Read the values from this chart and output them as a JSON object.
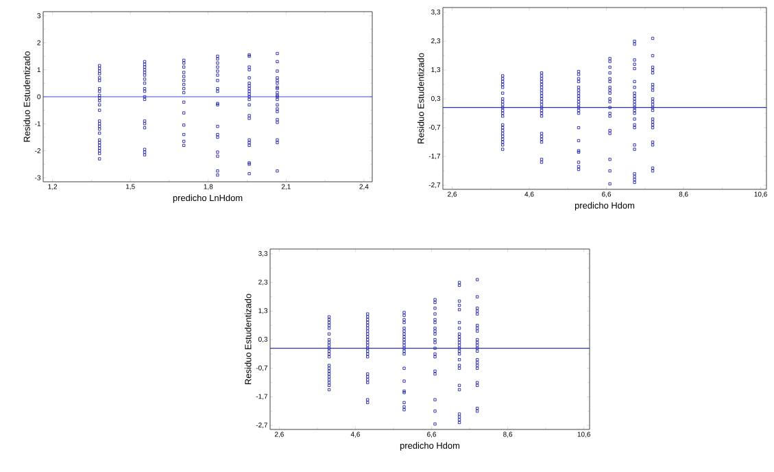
{
  "chart_data": [
    {
      "type": "scatter",
      "xlabel": "predicho LnHdom",
      "ylabel": "Residuo Estudentizado",
      "marker": "square",
      "grid": false,
      "xlim": [
        1.164,
        2.432
      ],
      "ylim": [
        -3.15,
        3.15
      ],
      "xticks": [
        {
          "value": 1.2,
          "label": "1,2"
        },
        {
          "value": 1.5,
          "label": "1,5"
        },
        {
          "value": 1.8,
          "label": "1,8"
        },
        {
          "value": 2.1,
          "label": "2,1"
        },
        {
          "value": 2.4,
          "label": "2,4"
        }
      ],
      "yticks": [
        -3,
        -2,
        -1,
        0,
        1,
        2,
        3
      ],
      "ref_lines": [
        {
          "axis": "y",
          "value": 0,
          "color": "#3a48d0"
        }
      ],
      "series": [
        {
          "color": "#2323a8",
          "x": [
            1.381,
            1.381,
            1.381,
            1.381,
            1.381,
            1.381,
            1.381,
            1.381,
            1.381,
            1.381,
            1.381,
            1.381,
            1.381,
            1.381,
            1.381,
            1.381,
            1.381,
            1.381,
            1.381,
            1.381,
            1.381,
            1.381,
            1.381,
            1.381,
            1.381,
            1.555,
            1.555,
            1.555,
            1.555,
            1.555,
            1.555,
            1.555,
            1.555,
            1.555,
            1.555,
            1.555,
            1.555,
            1.555,
            1.555,
            1.555,
            1.555,
            1.555,
            1.555,
            1.706,
            1.706,
            1.706,
            1.706,
            1.706,
            1.706,
            1.706,
            1.706,
            1.706,
            1.706,
            1.706,
            1.706,
            1.706,
            1.706,
            1.706,
            1.836,
            1.836,
            1.836,
            1.836,
            1.836,
            1.836,
            1.836,
            1.836,
            1.836,
            1.836,
            1.836,
            1.836,
            1.836,
            1.836,
            1.836,
            1.836,
            1.836,
            1.836,
            1.958,
            1.958,
            1.958,
            1.958,
            1.958,
            1.958,
            1.958,
            1.958,
            1.958,
            1.958,
            1.958,
            1.958,
            1.958,
            1.958,
            1.958,
            1.958,
            1.958,
            1.958,
            1.958,
            1.958,
            1.958,
            2.066,
            2.066,
            2.066,
            2.066,
            2.066,
            2.066,
            2.066,
            2.066,
            2.066,
            2.066,
            2.066,
            2.066,
            2.066,
            2.066,
            2.066,
            2.066,
            2.066,
            2.066,
            2.066,
            2.066
          ],
          "values": [
            1.15,
            1.05,
            0.95,
            0.85,
            0.7,
            0.6,
            0.3,
            0.2,
            0.05,
            -0.05,
            -0.15,
            -0.3,
            -0.5,
            -0.9,
            -1.0,
            -1.1,
            -1.2,
            -1.35,
            -1.6,
            -1.7,
            -1.8,
            -1.9,
            -2.0,
            -2.1,
            -2.3,
            1.3,
            1.2,
            1.1,
            1.0,
            0.9,
            0.8,
            0.65,
            0.5,
            0.3,
            0.2,
            0.0,
            -0.1,
            -0.9,
            -1.0,
            -1.15,
            -1.95,
            -2.05,
            -2.15,
            1.35,
            1.25,
            1.1,
            0.9,
            0.75,
            0.6,
            0.45,
            0.3,
            0.15,
            -0.2,
            -0.6,
            -1.05,
            -1.4,
            -1.65,
            -1.8,
            1.5,
            1.4,
            1.25,
            1.1,
            0.95,
            0.8,
            0.6,
            0.3,
            0.2,
            -0.25,
            -0.3,
            -1.1,
            -1.4,
            -1.5,
            -2.05,
            -2.2,
            -2.75,
            -2.9,
            1.55,
            1.5,
            1.1,
            1.0,
            0.7,
            0.5,
            0.4,
            0.3,
            0.2,
            0.1,
            0.0,
            -0.1,
            -0.3,
            -0.7,
            -0.8,
            -1.6,
            -1.7,
            -1.8,
            -2.45,
            -2.5,
            -2.85,
            1.6,
            1.3,
            0.95,
            0.7,
            0.6,
            0.5,
            0.35,
            0.3,
            0.15,
            0.05,
            0.0,
            -0.1,
            -0.3,
            -0.45,
            -0.55,
            -0.85,
            -0.95,
            -1.6,
            -1.7,
            -2.75
          ]
        }
      ]
    },
    {
      "type": "scatter",
      "xlabel": "predicho Hdom",
      "ylabel": "Residuo Estudentizado",
      "marker": "square",
      "grid": false,
      "xlim": [
        2.36,
        10.75
      ],
      "ylim": [
        -2.84,
        3.47
      ],
      "xticks": [
        {
          "value": 2.6,
          "label": "2,6"
        },
        {
          "value": 4.6,
          "label": "4,6"
        },
        {
          "value": 6.6,
          "label": "6,6"
        },
        {
          "value": 8.6,
          "label": "8,6"
        },
        {
          "value": 10.6,
          "label": "10,6"
        }
      ],
      "yticks": [
        {
          "value": -2.7,
          "label": "-2,7"
        },
        {
          "value": -1.7,
          "label": "-1,7"
        },
        {
          "value": -0.7,
          "label": "-0,7"
        },
        {
          "value": 0.3,
          "label": "0,3"
        },
        {
          "value": 1.3,
          "label": "1,3"
        },
        {
          "value": 2.3,
          "label": "2,3"
        },
        {
          "value": 3.3,
          "label": "3,3"
        }
      ],
      "ref_lines": [
        {
          "axis": "y",
          "value": 0,
          "color": "#2a35a8"
        }
      ],
      "series": [
        {
          "color": "#2323a8",
          "x": [
            3.91,
            3.91,
            3.91,
            3.91,
            3.91,
            3.91,
            3.91,
            3.91,
            3.91,
            3.91,
            3.91,
            3.91,
            3.91,
            3.91,
            3.91,
            3.91,
            3.91,
            3.91,
            3.91,
            3.91,
            3.91,
            3.91,
            4.92,
            4.92,
            4.92,
            4.92,
            4.92,
            4.92,
            4.92,
            4.92,
            4.92,
            4.92,
            4.92,
            4.92,
            4.92,
            4.92,
            4.92,
            4.92,
            4.92,
            4.92,
            4.92,
            4.92,
            4.92,
            4.92,
            5.88,
            5.88,
            5.88,
            5.88,
            5.88,
            5.88,
            5.88,
            5.88,
            5.88,
            5.88,
            5.88,
            5.88,
            5.88,
            5.88,
            5.88,
            5.88,
            5.88,
            5.88,
            5.88,
            5.88,
            5.88,
            6.69,
            6.69,
            6.69,
            6.69,
            6.69,
            6.69,
            6.69,
            6.69,
            6.69,
            6.69,
            6.69,
            6.69,
            6.69,
            6.69,
            6.69,
            6.69,
            6.69,
            6.69,
            6.69,
            7.33,
            7.33,
            7.33,
            7.33,
            7.33,
            7.33,
            7.33,
            7.33,
            7.33,
            7.33,
            7.33,
            7.33,
            7.33,
            7.33,
            7.33,
            7.33,
            7.33,
            7.33,
            7.33,
            7.33,
            7.33,
            7.33,
            7.33,
            7.33,
            7.8,
            7.8,
            7.8,
            7.8,
            7.8,
            7.8,
            7.8,
            7.8,
            7.8,
            7.8,
            7.8,
            7.8,
            7.8,
            7.8,
            7.8,
            7.8,
            7.8,
            7.8,
            7.8,
            7.8,
            7.8
          ],
          "values": [
            1.1,
            1.0,
            0.9,
            0.8,
            0.7,
            0.5,
            0.3,
            0.2,
            0.1,
            0.0,
            -0.1,
            -0.2,
            -0.3,
            -0.6,
            -0.7,
            -0.8,
            -0.9,
            -1.0,
            -1.1,
            -1.2,
            -1.3,
            -1.45,
            1.2,
            1.1,
            1.0,
            0.9,
            0.8,
            0.7,
            0.6,
            0.5,
            0.4,
            0.3,
            0.2,
            0.1,
            0.0,
            -0.1,
            -0.2,
            -0.3,
            -0.9,
            -1.0,
            -1.1,
            -1.2,
            -1.8,
            -1.9,
            1.25,
            1.15,
            1.0,
            0.9,
            0.7,
            0.6,
            0.5,
            0.4,
            0.3,
            0.2,
            0.1,
            0.0,
            -0.1,
            -0.2,
            -0.7,
            -1.15,
            -1.5,
            -1.55,
            -1.9,
            -2.05,
            -2.15,
            1.7,
            1.6,
            1.4,
            1.2,
            1.0,
            0.9,
            0.7,
            0.6,
            0.5,
            0.3,
            0.2,
            0.0,
            -0.2,
            -0.3,
            -0.8,
            -0.9,
            -1.8,
            -2.2,
            -2.65,
            2.3,
            2.2,
            1.65,
            1.5,
            1.35,
            0.9,
            0.7,
            0.5,
            0.4,
            0.3,
            0.2,
            0.1,
            0.0,
            -0.1,
            -0.2,
            -0.4,
            -0.6,
            -0.7,
            -1.3,
            -1.45,
            -2.3,
            -2.4,
            -2.5,
            -2.6,
            2.4,
            1.8,
            1.4,
            1.3,
            1.2,
            0.8,
            0.7,
            0.6,
            0.3,
            0.2,
            0.1,
            0.0,
            -0.1,
            -0.4,
            -0.5,
            -0.6,
            -0.7,
            -1.2,
            -1.3,
            -2.1,
            -2.2
          ]
        }
      ]
    },
    {
      "type": "scatter",
      "xlabel": "predicho Hdom",
      "ylabel": "Residuo Estudentizado",
      "marker": "square",
      "grid": false,
      "xlim": [
        2.36,
        10.75
      ],
      "ylim": [
        -2.84,
        3.47
      ],
      "xticks": [
        {
          "value": 2.6,
          "label": "2,6"
        },
        {
          "value": 4.6,
          "label": "4,6"
        },
        {
          "value": 6.6,
          "label": "6,6"
        },
        {
          "value": 8.6,
          "label": "8,6"
        },
        {
          "value": 10.6,
          "label": "10,6"
        }
      ],
      "yticks": [
        {
          "value": -2.7,
          "label": "-2,7"
        },
        {
          "value": -1.7,
          "label": "-1,7"
        },
        {
          "value": -0.7,
          "label": "-0,7"
        },
        {
          "value": 0.3,
          "label": "0,3"
        },
        {
          "value": 1.3,
          "label": "1,3"
        },
        {
          "value": 2.3,
          "label": "2,3"
        },
        {
          "value": 3.3,
          "label": "3,3"
        }
      ],
      "ref_lines": [
        {
          "axis": "y",
          "value": 0,
          "color": "#2a35a8"
        }
      ],
      "series": [
        {
          "color": "#2323a8",
          "x": [
            3.91,
            3.91,
            3.91,
            3.91,
            3.91,
            3.91,
            3.91,
            3.91,
            3.91,
            3.91,
            3.91,
            3.91,
            3.91,
            3.91,
            3.91,
            3.91,
            3.91,
            3.91,
            3.91,
            3.91,
            3.91,
            3.91,
            4.92,
            4.92,
            4.92,
            4.92,
            4.92,
            4.92,
            4.92,
            4.92,
            4.92,
            4.92,
            4.92,
            4.92,
            4.92,
            4.92,
            4.92,
            4.92,
            4.92,
            4.92,
            4.92,
            4.92,
            4.92,
            4.92,
            5.88,
            5.88,
            5.88,
            5.88,
            5.88,
            5.88,
            5.88,
            5.88,
            5.88,
            5.88,
            5.88,
            5.88,
            5.88,
            5.88,
            5.88,
            5.88,
            5.88,
            5.88,
            5.88,
            5.88,
            5.88,
            6.69,
            6.69,
            6.69,
            6.69,
            6.69,
            6.69,
            6.69,
            6.69,
            6.69,
            6.69,
            6.69,
            6.69,
            6.69,
            6.69,
            6.69,
            6.69,
            6.69,
            6.69,
            6.69,
            7.33,
            7.33,
            7.33,
            7.33,
            7.33,
            7.33,
            7.33,
            7.33,
            7.33,
            7.33,
            7.33,
            7.33,
            7.33,
            7.33,
            7.33,
            7.33,
            7.33,
            7.33,
            7.33,
            7.33,
            7.33,
            7.33,
            7.33,
            7.33,
            7.8,
            7.8,
            7.8,
            7.8,
            7.8,
            7.8,
            7.8,
            7.8,
            7.8,
            7.8,
            7.8,
            7.8,
            7.8,
            7.8,
            7.8,
            7.8,
            7.8,
            7.8,
            7.8,
            7.8,
            7.8
          ],
          "values": [
            1.1,
            1.0,
            0.9,
            0.8,
            0.7,
            0.5,
            0.3,
            0.2,
            0.1,
            0.0,
            -0.1,
            -0.2,
            -0.3,
            -0.6,
            -0.7,
            -0.8,
            -0.9,
            -1.0,
            -1.1,
            -1.2,
            -1.3,
            -1.45,
            1.2,
            1.1,
            1.0,
            0.9,
            0.8,
            0.7,
            0.6,
            0.5,
            0.4,
            0.3,
            0.2,
            0.1,
            0.0,
            -0.1,
            -0.2,
            -0.3,
            -0.9,
            -1.0,
            -1.1,
            -1.2,
            -1.8,
            -1.9,
            1.25,
            1.15,
            1.0,
            0.9,
            0.7,
            0.6,
            0.5,
            0.4,
            0.3,
            0.2,
            0.1,
            0.0,
            -0.1,
            -0.2,
            -0.7,
            -1.15,
            -1.5,
            -1.55,
            -1.9,
            -2.05,
            -2.15,
            1.7,
            1.6,
            1.4,
            1.2,
            1.0,
            0.9,
            0.7,
            0.6,
            0.5,
            0.3,
            0.2,
            0.0,
            -0.2,
            -0.3,
            -0.8,
            -0.9,
            -1.8,
            -2.2,
            -2.65,
            2.3,
            2.2,
            1.65,
            1.5,
            1.35,
            0.9,
            0.7,
            0.5,
            0.4,
            0.3,
            0.2,
            0.1,
            0.0,
            -0.1,
            -0.2,
            -0.4,
            -0.6,
            -0.7,
            -1.3,
            -1.45,
            -2.3,
            -2.4,
            -2.5,
            -2.6,
            2.4,
            1.8,
            1.4,
            1.3,
            1.2,
            0.8,
            0.7,
            0.6,
            0.3,
            0.2,
            0.1,
            0.0,
            -0.1,
            -0.4,
            -0.5,
            -0.6,
            -0.7,
            -1.2,
            -1.3,
            -2.1,
            -2.2
          ]
        }
      ]
    }
  ]
}
